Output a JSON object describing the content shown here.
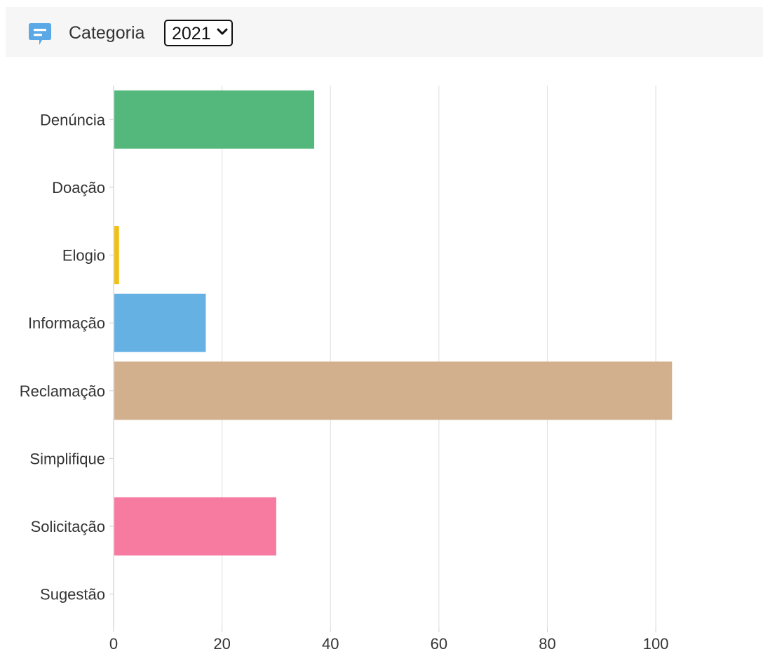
{
  "header": {
    "title": "Categoria",
    "icon": "chat-icon",
    "icon_color": "#5aa9e6",
    "year_select": {
      "selected": "2021"
    }
  },
  "chart_data": {
    "type": "bar",
    "orientation": "horizontal",
    "categories": [
      "Denúncia",
      "Doação",
      "Elogio",
      "Informação",
      "Reclamação",
      "Simplifique",
      "Solicitação",
      "Sugestão"
    ],
    "values": [
      37,
      0,
      1,
      17,
      103,
      0,
      30,
      0
    ],
    "colors": [
      "#54b87c",
      "#9aa0a6",
      "#f0c01a",
      "#66b1e3",
      "#d2b08e",
      "#9aa0a6",
      "#f77aa1",
      "#9aa0a6"
    ],
    "x_ticks": [
      0,
      20,
      40,
      60,
      80,
      100
    ],
    "xlim": [
      0,
      119
    ],
    "grid": true,
    "legend": "none"
  }
}
